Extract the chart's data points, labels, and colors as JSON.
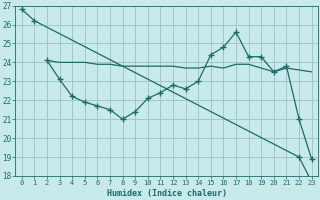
{
  "xlabel": "Humidex (Indice chaleur)",
  "bg_color": "#c8eaea",
  "grid_color": "#a0c8c8",
  "line_color": "#1a6b6b",
  "xlim": [
    -0.5,
    23.5
  ],
  "ylim": [
    18,
    27
  ],
  "yticks": [
    18,
    19,
    20,
    21,
    22,
    23,
    24,
    25,
    26,
    27
  ],
  "xticks": [
    0,
    1,
    2,
    3,
    4,
    5,
    6,
    7,
    8,
    9,
    10,
    11,
    12,
    13,
    14,
    15,
    16,
    17,
    18,
    19,
    20,
    21,
    22,
    23
  ],
  "series": [
    {
      "x": [
        0,
        1,
        22,
        23
      ],
      "y": [
        26.8,
        26.2,
        19.0,
        17.7
      ]
    },
    {
      "x": [
        2,
        3,
        4,
        5,
        6,
        7,
        8,
        9,
        10,
        11,
        12,
        13,
        14,
        15,
        16,
        17,
        18,
        19,
        20,
        21,
        22,
        23
      ],
      "y": [
        24.1,
        23.1,
        22.2,
        21.9,
        21.7,
        21.5,
        21.0,
        21.4,
        22.1,
        22.4,
        22.8,
        22.6,
        23.0,
        24.4,
        24.8,
        25.6,
        24.3,
        24.3,
        23.5,
        23.8,
        21.0,
        18.9
      ]
    },
    {
      "x": [
        2,
        3,
        4,
        5,
        6,
        7,
        8,
        9,
        10,
        11,
        12,
        13,
        14,
        15,
        16,
        17,
        18,
        19,
        20,
        21,
        22,
        23
      ],
      "y": [
        24.1,
        24.0,
        24.0,
        24.0,
        23.9,
        23.9,
        23.8,
        23.8,
        23.8,
        23.8,
        23.8,
        23.7,
        23.7,
        23.8,
        23.7,
        23.9,
        23.9,
        23.7,
        23.5,
        23.7,
        23.6,
        23.5
      ]
    }
  ]
}
